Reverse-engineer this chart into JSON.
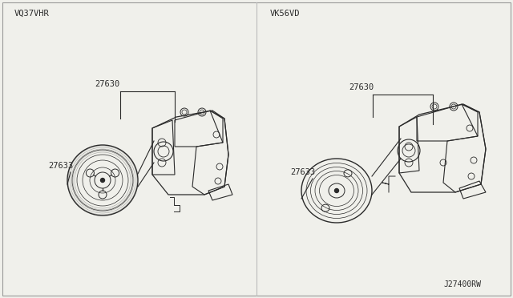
{
  "bg_color": "#f0f0eb",
  "line_color": "#2a2a2a",
  "text_color": "#2a2a2a",
  "border_color": "#999999",
  "divider_color": "#bbbbbb",
  "left_label": "VQ37VHR",
  "right_label": "VK56VD",
  "bottom_right_label": "J27400RW",
  "left_part1_label": "27630",
  "left_part2_label": "27633",
  "right_part1_label": "27630",
  "right_part2_label": "27633",
  "font_size": 7.5
}
